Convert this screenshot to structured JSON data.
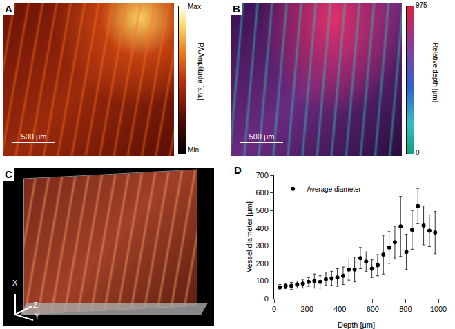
{
  "panels": {
    "A": {
      "label": "A",
      "scale_bar": "500 μm",
      "colorbar": {
        "title": "PA Amplitude [a.u.]",
        "tick_labels": [
          "Min",
          "Max"
        ]
      }
    },
    "B": {
      "label": "B",
      "scale_bar": "500 μm",
      "colorbar": {
        "title": "Relative depth [μm]",
        "range": [
          0,
          975
        ],
        "ticks": [
          0,
          975
        ]
      }
    },
    "C": {
      "label": "C",
      "axes": [
        "X",
        "Y",
        "Z"
      ]
    },
    "D": {
      "label": "D"
    }
  },
  "chart_data": {
    "type": "scatter",
    "xlabel": "Depth [μm]",
    "ylabel": "Vessel diameter [μm]",
    "x": [
      35,
      70,
      105,
      140,
      175,
      210,
      245,
      280,
      315,
      350,
      385,
      420,
      455,
      490,
      525,
      560,
      595,
      630,
      665,
      700,
      735,
      770,
      805,
      840,
      875,
      910,
      945,
      980
    ],
    "series": [
      {
        "name": "Average diameter",
        "color": "#000000",
        "values": [
          65,
          72,
          72,
          80,
          85,
          95,
          100,
          95,
          110,
          115,
          120,
          130,
          165,
          165,
          230,
          210,
          170,
          190,
          250,
          290,
          320,
          410,
          265,
          390,
          525,
          415,
          385,
          375
        ],
        "error": [
          15,
          15,
          20,
          20,
          25,
          25,
          40,
          35,
          35,
          40,
          50,
          50,
          60,
          70,
          60,
          55,
          50,
          60,
          110,
          90,
          90,
          170,
          100,
          110,
          100,
          110,
          90,
          120
        ]
      }
    ],
    "xlim": [
      0,
      1000
    ],
    "xticks": [
      0,
      200,
      400,
      600,
      800,
      1000
    ],
    "ylim": [
      0,
      700
    ],
    "yticks": [
      0,
      100,
      200,
      300,
      400,
      500,
      600,
      700
    ],
    "grid": false,
    "legend": "top left",
    "marker": "circle"
  }
}
